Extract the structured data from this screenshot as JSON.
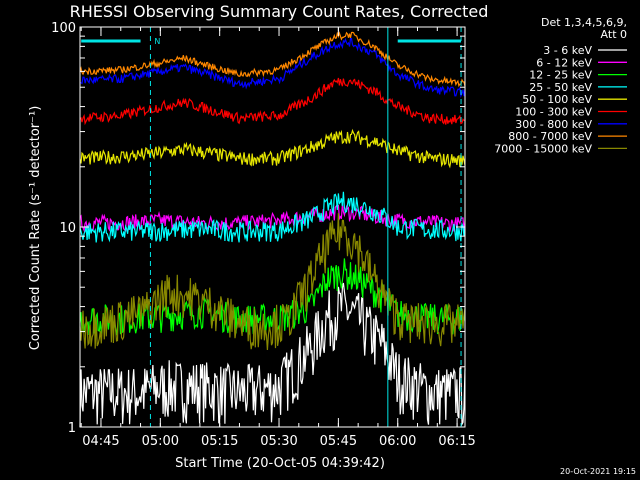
{
  "chart_data": {
    "type": "line",
    "title": "RHESSI Observing Summary Count Rates, Corrected",
    "xlabel": "Start Time (20-Oct-05 04:39:42)",
    "ylabel": "Corrected Count Rate (s⁻¹ detector⁻¹)",
    "y_scale": "log",
    "ylim": [
      1,
      100
    ],
    "xlim": [
      "04:39:42",
      "06:17:00"
    ],
    "x_tick_labels": [
      "04:45",
      "05:00",
      "05:15",
      "05:30",
      "05:45",
      "06:00",
      "06:15"
    ],
    "y_tick_labels": [
      "1",
      "10",
      "100"
    ],
    "legend_header": [
      "Det 1,3,4,5,6,9,",
      "Att 0"
    ],
    "legend_position": "right",
    "colors": {
      "background": "#000000",
      "axes": "#ffffff",
      "boundary": "#00e5e5"
    },
    "series": [
      {
        "name": "3 - 6 keV",
        "color": "#ffffff",
        "x": [
          "04:40",
          "04:45",
          "04:55",
          "05:00",
          "05:10",
          "05:20",
          "05:30",
          "05:38",
          "05:42",
          "05:46",
          "05:50",
          "05:56",
          "06:00",
          "06:08",
          "06:17"
        ],
        "y": [
          1.5,
          1.5,
          1.5,
          1.6,
          1.6,
          1.5,
          1.6,
          2.5,
          3.5,
          4,
          3.5,
          2.6,
          1.8,
          1.5,
          1.5
        ]
      },
      {
        "name": "6 - 12 keV",
        "color": "#ff00ff",
        "x": [
          "04:40",
          "04:50",
          "05:00",
          "05:10",
          "05:20",
          "05:30",
          "05:40",
          "05:46",
          "05:52",
          "06:00",
          "06:10",
          "06:17"
        ],
        "y": [
          10.5,
          10.5,
          10.8,
          10.5,
          10.5,
          10.8,
          11.5,
          12,
          11.5,
          10.8,
          10.5,
          10.3
        ]
      },
      {
        "name": "12 - 25 keV",
        "color": "#00ff00",
        "x": [
          "04:40",
          "04:50",
          "05:00",
          "05:10",
          "05:20",
          "05:30",
          "05:38",
          "05:42",
          "05:46",
          "05:50",
          "05:56",
          "06:00",
          "06:08",
          "06:17"
        ],
        "y": [
          3.5,
          3.5,
          3.6,
          3.8,
          3.5,
          3.5,
          4,
          5.5,
          6,
          5.5,
          4.5,
          3.7,
          3.5,
          3.5
        ]
      },
      {
        "name": "25 - 50 keV",
        "color": "#00ffff",
        "x": [
          "04:40",
          "04:50",
          "05:00",
          "05:10",
          "05:20",
          "05:30",
          "05:38",
          "05:42",
          "05:46",
          "05:50",
          "05:56",
          "06:00",
          "06:08",
          "06:17"
        ],
        "y": [
          9.5,
          9.5,
          9.6,
          9.8,
          9.5,
          9.6,
          11,
          12.5,
          13.5,
          13,
          11.5,
          10,
          9.7,
          9.6
        ]
      },
      {
        "name": "50 - 100 keV",
        "color": "#e5e500",
        "x": [
          "04:40",
          "04:50",
          "05:00",
          "05:06",
          "05:12",
          "05:20",
          "05:30",
          "05:38",
          "05:44",
          "05:48",
          "05:54",
          "06:00",
          "06:08",
          "06:17"
        ],
        "y": [
          22,
          22.5,
          23.5,
          24.5,
          23.5,
          22,
          22,
          25,
          28,
          28.5,
          27,
          24,
          22,
          21.5
        ]
      },
      {
        "name": "100 - 300 keV",
        "color": "#ff0000",
        "x": [
          "04:40",
          "04:50",
          "05:00",
          "05:06",
          "05:12",
          "05:20",
          "05:30",
          "05:38",
          "05:44",
          "05:48",
          "05:54",
          "06:00",
          "06:08",
          "06:17"
        ],
        "y": [
          35,
          36,
          40,
          42,
          39,
          35,
          36,
          44,
          53,
          54,
          48,
          40,
          35,
          34
        ]
      },
      {
        "name": "300 - 800 keV",
        "color": "#0000ff",
        "x": [
          "04:40",
          "04:50",
          "05:00",
          "05:06",
          "05:12",
          "05:20",
          "05:30",
          "05:38",
          "05:44",
          "05:48",
          "05:54",
          "06:00",
          "06:08",
          "06:17"
        ],
        "y": [
          54,
          55,
          60,
          63,
          58,
          52,
          55,
          70,
          82,
          84,
          74,
          58,
          49,
          47
        ]
      },
      {
        "name": "800 - 7000 keV",
        "color": "#ff8800",
        "x": [
          "04:40",
          "04:50",
          "05:00",
          "05:06",
          "05:12",
          "05:20",
          "05:30",
          "05:38",
          "05:44",
          "05:48",
          "05:54",
          "06:00",
          "06:08",
          "06:17"
        ],
        "y": [
          60,
          61,
          66,
          70,
          64,
          58,
          61,
          76,
          89,
          92,
          80,
          64,
          55,
          52
        ]
      },
      {
        "name": "7000 - 15000 keV",
        "color": "#888800",
        "x": [
          "04:40",
          "04:48",
          "04:56",
          "05:02",
          "05:08",
          "05:14",
          "05:20",
          "05:26",
          "05:32",
          "05:38",
          "05:42",
          "05:46",
          "05:50",
          "05:54",
          "05:58",
          "06:02",
          "06:10",
          "06:17"
        ],
        "y": [
          3.2,
          3.4,
          3.8,
          4.8,
          4.5,
          4.0,
          3.3,
          3.2,
          3.4,
          5.5,
          8,
          10,
          8,
          5.5,
          4,
          3.4,
          3.3,
          3.3
        ]
      }
    ],
    "annotations": {
      "boundary_markers": [
        "04:39:42",
        "04:57:30",
        "05:57:30",
        "06:16:00"
      ],
      "solid_cyan_segments": [
        [
          "04:40",
          "04:55"
        ],
        [
          "06:00",
          "06:16"
        ]
      ],
      "marker_label": "N"
    }
  },
  "footer_stamp": "20-Oct-2021 19:15"
}
